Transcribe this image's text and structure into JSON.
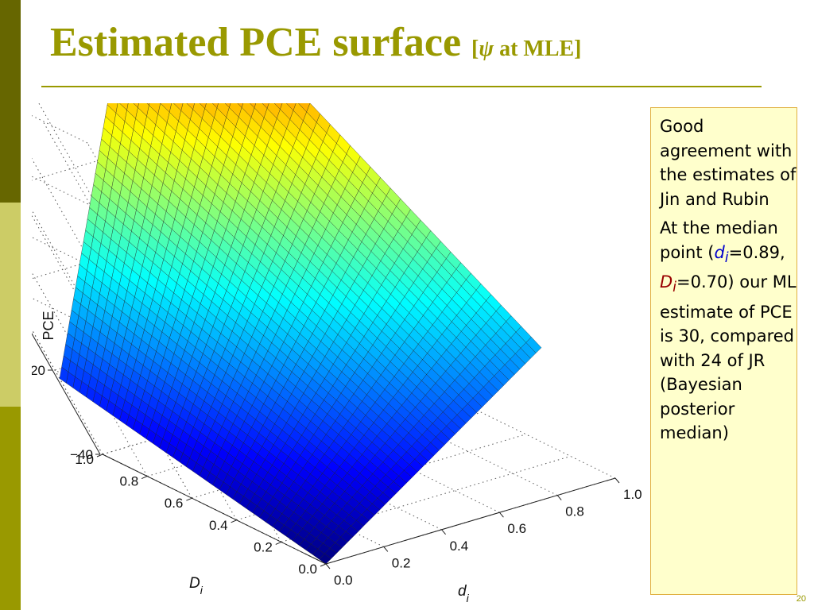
{
  "slide": {
    "title_main": "Estimated PCE surface",
    "title_bracket_open": "[",
    "title_psi": "ψ",
    "title_bracket_rest": " at MLE]",
    "page_number": "20"
  },
  "note": {
    "para1": "Good agreement with the estimates of Jin and Rubin",
    "para2_lead": "At the median point (",
    "d_sym": "d",
    "sub_i": "i",
    "d_val": "=0.89,",
    "D_sym": "D",
    "D_val": "=0.70)",
    "para2_tail": "our ML estimate of PCE is 30, compared with 24 of JR (Bayesian posterior median)"
  },
  "colors": {
    "accent": "#999900",
    "accent_dark": "#666600",
    "accent_light": "#cccc66",
    "note_bg": "#ffffcc",
    "d_color": "#0000cc",
    "D_color": "#990000"
  },
  "chart_data": {
    "type": "surface",
    "zlabel": "PCE",
    "xlabel_main": "d",
    "xlabel_sub": "i",
    "ylabel_main": "D",
    "ylabel_sub": "i",
    "xlim": [
      0,
      1
    ],
    "ylim": [
      0,
      1
    ],
    "zlim": [
      -40,
      60
    ],
    "x_ticks": [
      "0.0",
      "0.2",
      "0.4",
      "0.6",
      "0.8",
      "1.0"
    ],
    "y_ticks": [
      "0.0",
      "0.2",
      "0.4",
      "0.6",
      "0.8",
      "1.0"
    ],
    "z_ticks": [
      "−40",
      "−20",
      "0",
      "20",
      "40",
      "60"
    ],
    "grid": true,
    "colormap": "jet",
    "mesh_n": 40,
    "corners": [
      {
        "d": 0,
        "D": 0,
        "pce": -40
      },
      {
        "d": 1,
        "D": 0,
        "pce": -9
      },
      {
        "d": 0,
        "D": 1,
        "pce": -22
      },
      {
        "d": 1,
        "D": 1,
        "pce": 66
      }
    ]
  }
}
